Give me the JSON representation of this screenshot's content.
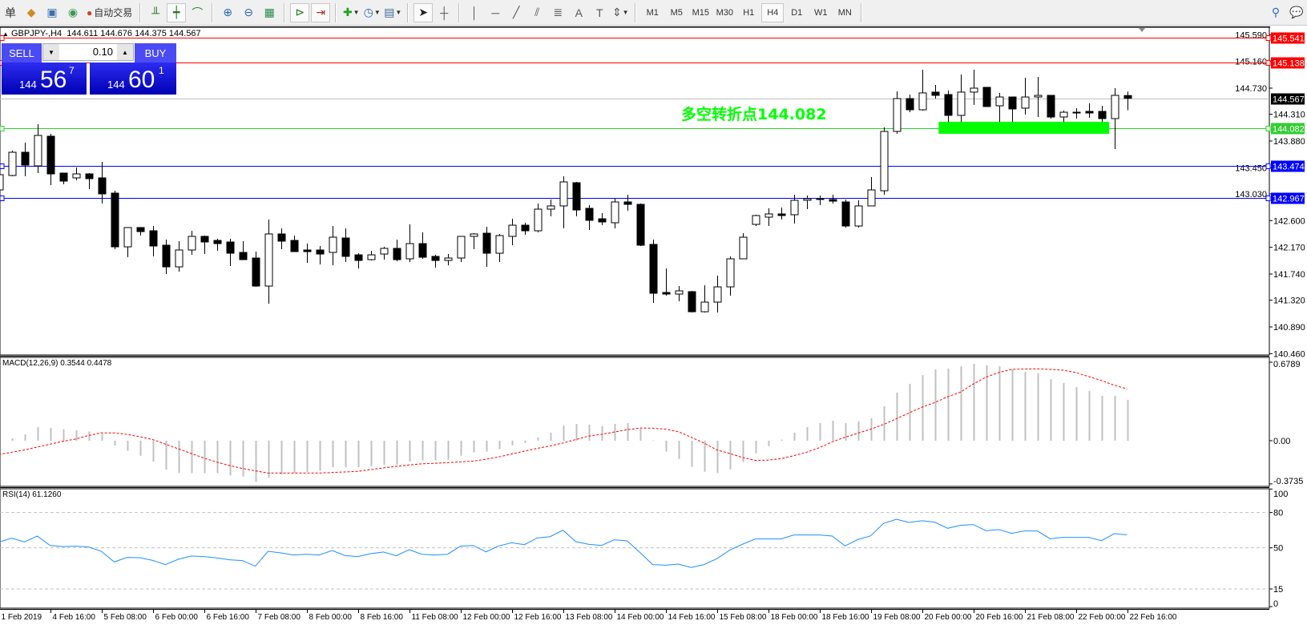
{
  "toolbar": {
    "items": [
      {
        "type": "icon",
        "name": "orders-icon",
        "glyph": "单"
      },
      {
        "type": "icon",
        "name": "market-watch-icon",
        "glyph": "◆",
        "color": "#d08a20"
      },
      {
        "type": "icon",
        "name": "navigator-icon",
        "glyph": "▣",
        "color": "#3a6fb0"
      },
      {
        "type": "icon",
        "name": "signals-icon",
        "glyph": "◉",
        "color": "#3a9a50"
      },
      {
        "type": "button",
        "name": "auto-trading-button",
        "glyph": "●",
        "color": "#d04020",
        "label": "自动交易"
      },
      {
        "type": "sep"
      },
      {
        "type": "icon",
        "name": "bar-chart-icon",
        "glyph": "╨",
        "color": "#2a7a2a"
      },
      {
        "type": "icon",
        "name": "candlestick-chart-icon",
        "glyph": "┿",
        "color": "#2a7a2a",
        "active": true
      },
      {
        "type": "icon",
        "name": "line-chart-icon",
        "glyph": "⌒",
        "color": "#2a7a2a"
      },
      {
        "type": "sep"
      },
      {
        "type": "icon",
        "name": "zoom-in-icon",
        "glyph": "⊕",
        "color": "#2a6ab0"
      },
      {
        "type": "icon",
        "name": "zoom-out-icon",
        "glyph": "⊖",
        "color": "#2a6ab0"
      },
      {
        "type": "icon",
        "name": "tile-windows-icon",
        "glyph": "▦",
        "color": "#2a8a4a"
      },
      {
        "type": "sep"
      },
      {
        "type": "icon",
        "name": "auto-scroll-icon",
        "glyph": "⊳",
        "color": "#2a7a2a",
        "active": true
      },
      {
        "type": "icon",
        "name": "chart-shift-icon",
        "glyph": "⇥",
        "color": "#b03030",
        "active": true
      },
      {
        "type": "sep"
      },
      {
        "type": "icon",
        "name": "indicators-icon",
        "glyph": "✚",
        "color": "#20a020",
        "dropdown": true
      },
      {
        "type": "icon",
        "name": "periods-clock-icon",
        "glyph": "◷",
        "color": "#2a6ab0",
        "dropdown": true
      },
      {
        "type": "icon",
        "name": "templates-icon",
        "glyph": "▤",
        "color": "#3a6a9a",
        "dropdown": true
      },
      {
        "type": "sep"
      },
      {
        "type": "icon",
        "name": "cursor-icon",
        "glyph": "➤",
        "color": "#222",
        "active": true
      },
      {
        "type": "icon",
        "name": "crosshair-icon",
        "glyph": "┼",
        "color": "#555"
      },
      {
        "type": "sep"
      },
      {
        "type": "icon",
        "name": "vertical-line-icon",
        "glyph": "│",
        "color": "#555"
      },
      {
        "type": "icon",
        "name": "horizontal-line-icon",
        "glyph": "─",
        "color": "#555"
      },
      {
        "type": "icon",
        "name": "trendline-icon",
        "glyph": "╱",
        "color": "#555"
      },
      {
        "type": "icon",
        "name": "equidistant-channel-icon",
        "glyph": "⫽",
        "color": "#555"
      },
      {
        "type": "icon",
        "name": "fibonacci-icon",
        "glyph": "≣",
        "color": "#555"
      },
      {
        "type": "icon",
        "name": "text-icon",
        "glyph": "A",
        "color": "#555"
      },
      {
        "type": "icon",
        "name": "text-label-icon",
        "glyph": "T",
        "color": "#555"
      },
      {
        "type": "icon",
        "name": "arrows-icon",
        "glyph": "⇕",
        "color": "#555",
        "dropdown": true
      },
      {
        "type": "sep"
      }
    ],
    "timeframes": [
      "M1",
      "M5",
      "M15",
      "M30",
      "H1",
      "H4",
      "D1",
      "W1",
      "MN"
    ],
    "active_timeframe": "H4",
    "right": [
      {
        "name": "search-icon",
        "glyph": "⚲",
        "color": "#2a6ad0"
      },
      {
        "name": "chat-icon",
        "glyph": "💬",
        "color": "#888"
      }
    ]
  },
  "chart": {
    "symbol_header": "GBPJPY-,H4  144.611 144.676 144.375 144.567",
    "header_icon": "▲",
    "annotation": "多空转折点144.082"
  },
  "trade_panel": {
    "sell_label": "SELL",
    "buy_label": "BUY",
    "lot": "0.10",
    "sell_price": {
      "small": "144",
      "big": "56",
      "sup": "7"
    },
    "buy_price": {
      "small": "144",
      "big": "60",
      "sup": "1"
    }
  },
  "chart_data": [
    {
      "type": "candlestick",
      "symbol": "GBPJPY-",
      "timeframe": "H4",
      "ylim": [
        140.46,
        145.6
      ],
      "y_ticks": [
        "145.590",
        "145.160",
        "144.730",
        "144.310",
        "143.880",
        "143.450",
        "143.030",
        "142.600",
        "142.170",
        "141.740",
        "141.320",
        "140.890",
        "140.460"
      ],
      "x_tick_labels": [
        "1 Feb 2019",
        "4 Feb 16:00",
        "5 Feb 08:00",
        "6 Feb 00:00",
        "6 Feb 16:00",
        "7 Feb 08:00",
        "8 Feb 00:00",
        "8 Feb 16:00",
        "11 Feb 08:00",
        "12 Feb 00:00",
        "12 Feb 16:00",
        "13 Feb 08:00",
        "14 Feb 00:00",
        "14 Feb 16:00",
        "15 Feb 08:00",
        "18 Feb 00:00",
        "18 Feb 16:00",
        "19 Feb 08:00",
        "20 Feb 00:00",
        "20 Feb 16:00",
        "21 Feb 08:00",
        "22 Feb 00:00",
        "22 Feb 16:00"
      ],
      "ohlc": [
        [
          143.093,
          143.39,
          143.055,
          143.338
        ],
        [
          143.325,
          143.725,
          143.312,
          143.699
        ],
        [
          143.699,
          143.854,
          143.312,
          143.493
        ],
        [
          143.48,
          144.15,
          143.364,
          143.97
        ],
        [
          143.957,
          143.995,
          143.171,
          143.351
        ],
        [
          143.364,
          143.364,
          143.184,
          143.235
        ],
        [
          143.287,
          143.454,
          143.248,
          143.351
        ],
        [
          143.351,
          143.364,
          143.106,
          143.274
        ],
        [
          143.287,
          143.544,
          142.874,
          143.029
        ],
        [
          143.042,
          143.08,
          142.14,
          142.178
        ],
        [
          142.178,
          142.488,
          142.011,
          142.488
        ],
        [
          142.488,
          142.488,
          142.359,
          142.423
        ],
        [
          142.436,
          142.513,
          142.024,
          142.191
        ],
        [
          142.204,
          142.294,
          141.74,
          141.856
        ],
        [
          141.856,
          142.269,
          141.779,
          142.127
        ],
        [
          142.127,
          142.436,
          142.049,
          142.346
        ],
        [
          142.346,
          142.359,
          142.062,
          142.256
        ],
        [
          142.281,
          142.307,
          142.114,
          142.23
        ],
        [
          142.256,
          142.307,
          141.869,
          142.075
        ],
        [
          142.088,
          142.269,
          141.972,
          141.972
        ],
        [
          141.998,
          142.101,
          141.534,
          141.547
        ],
        [
          141.547,
          142.617,
          141.263,
          142.385
        ],
        [
          142.385,
          142.475,
          142.14,
          142.269
        ],
        [
          142.281,
          142.359,
          142.101,
          142.101
        ],
        [
          142.127,
          142.23,
          141.921,
          142.101
        ],
        [
          142.127,
          142.191,
          141.895,
          142.062
        ],
        [
          142.088,
          142.513,
          141.882,
          142.333
        ],
        [
          142.32,
          142.475,
          141.933,
          142.024
        ],
        [
          142.049,
          142.075,
          141.83,
          141.959
        ],
        [
          141.972,
          142.114,
          141.959,
          142.049
        ],
        [
          142.062,
          142.178,
          141.972,
          142.153
        ],
        [
          142.153,
          142.294,
          141.946,
          141.972
        ],
        [
          141.985,
          142.539,
          141.933,
          142.23
        ],
        [
          142.23,
          142.41,
          141.985,
          142.011
        ],
        [
          142.024,
          142.049,
          141.843,
          141.959
        ],
        [
          141.959,
          142.062,
          141.882,
          141.998
        ],
        [
          141.998,
          142.346,
          141.933,
          142.346
        ],
        [
          142.346,
          142.397,
          142.14,
          142.385
        ],
        [
          142.397,
          142.501,
          141.856,
          142.075
        ],
        [
          142.075,
          142.385,
          141.933,
          142.359
        ],
        [
          142.346,
          142.629,
          142.204,
          142.526
        ],
        [
          142.526,
          142.565,
          142.372,
          142.436
        ],
        [
          142.436,
          142.874,
          142.41,
          142.784
        ],
        [
          142.784,
          142.939,
          142.668,
          142.836
        ],
        [
          142.836,
          143.312,
          142.475,
          143.222
        ],
        [
          143.209,
          143.222,
          142.668,
          142.771
        ],
        [
          142.797,
          142.848,
          142.449,
          142.604
        ],
        [
          142.629,
          142.72,
          142.526,
          142.578
        ],
        [
          142.565,
          142.952,
          142.475,
          142.9
        ],
        [
          142.9,
          143.016,
          142.758,
          142.861
        ],
        [
          142.861,
          142.874,
          142.191,
          142.204
        ],
        [
          142.217,
          142.294,
          141.276,
          141.431
        ],
        [
          141.444,
          141.83,
          141.392,
          141.418
        ],
        [
          141.418,
          141.547,
          141.302,
          141.47
        ],
        [
          141.457,
          141.47,
          141.122,
          141.134
        ],
        [
          141.134,
          141.56,
          141.122,
          141.289
        ],
        [
          141.289,
          141.714,
          141.122,
          141.534
        ],
        [
          141.534,
          142.024,
          141.392,
          141.985
        ],
        [
          141.985,
          142.397,
          141.985,
          142.333
        ],
        [
          142.539,
          142.694,
          142.513,
          142.681
        ],
        [
          142.655,
          142.797,
          142.513,
          142.707
        ],
        [
          142.707,
          142.81,
          142.617,
          142.681
        ],
        [
          142.694,
          143.016,
          142.552,
          142.926
        ],
        [
          142.926,
          143.003,
          142.784,
          142.952
        ],
        [
          142.952,
          143.003,
          142.848,
          142.952
        ],
        [
          142.939,
          143.016,
          142.874,
          142.913
        ],
        [
          142.9,
          142.939,
          142.488,
          142.513
        ],
        [
          142.513,
          142.926,
          142.488,
          142.836
        ],
        [
          142.836,
          143.3,
          142.836,
          143.093
        ],
        [
          143.08,
          144.099,
          143.016,
          144.034
        ],
        [
          144.034,
          144.678,
          143.995,
          144.562
        ],
        [
          144.562,
          144.627,
          144.343,
          144.382
        ],
        [
          144.382,
          145.026,
          144.369,
          144.653
        ],
        [
          144.666,
          144.782,
          144.562,
          144.614
        ],
        [
          144.627,
          144.691,
          144.189,
          144.292
        ],
        [
          144.292,
          144.949,
          144.189,
          144.666
        ],
        [
          144.666,
          145.026,
          144.459,
          144.73
        ],
        [
          144.743,
          144.743,
          144.434,
          144.434
        ],
        [
          144.446,
          144.653,
          144.189,
          144.588
        ],
        [
          144.588,
          144.588,
          144.189,
          144.395
        ],
        [
          144.408,
          144.897,
          144.305,
          144.588
        ],
        [
          144.588,
          144.91,
          144.266,
          144.614
        ],
        [
          144.614,
          144.614,
          144.24,
          144.266
        ],
        [
          144.266,
          144.369,
          144.189,
          144.343
        ],
        [
          144.343,
          144.408,
          144.24,
          144.343
        ],
        [
          144.356,
          144.485,
          144.253,
          144.33
        ],
        [
          144.356,
          144.446,
          144.189,
          144.24
        ],
        [
          144.24,
          144.73,
          143.751,
          144.614
        ],
        [
          144.611,
          144.676,
          144.375,
          144.567
        ]
      ],
      "horizontal_levels": [
        {
          "price": "145.541",
          "color": "#ff0000",
          "label_text": "#ffffff"
        },
        {
          "price": "145.138",
          "color": "#ff0000",
          "label_text": "#ffffff"
        },
        {
          "price": "144.567",
          "color": "#c0c0c0",
          "label_bg": "#000000",
          "label_text": "#ffffff",
          "kind": "bid"
        },
        {
          "price": "144.082",
          "color": "#32cd32",
          "label_text": "#ffffff"
        },
        {
          "price": "143.474",
          "color": "#0000ff",
          "label_text": "#ffffff"
        },
        {
          "price": "142.967",
          "color": "#0000ff",
          "label_text": "#ffffff"
        }
      ],
      "zone": {
        "price_top": 144.189,
        "price_bottom": 143.995,
        "bar_start": 73.3,
        "bar_end": 86.6,
        "color": "#00ff00"
      },
      "bull_body_color": "#ffffff",
      "bear_body_color": "#000000"
    },
    {
      "type": "bar+line",
      "label": "MACD(12,26,9) 0.3544 0.4478",
      "y_ticks": [
        "0.6789",
        "0.00",
        "-0.3735"
      ],
      "ylim": [
        -0.3735,
        0.6789
      ],
      "histogram_color": "#c0c0c0",
      "signal_color": "#ff0000",
      "macd": [
        0.01,
        0.02,
        0.055,
        0.118,
        0.11,
        0.1,
        0.09,
        0.08,
        0.06,
        -0.04,
        -0.088,
        -0.13,
        -0.18,
        -0.25,
        -0.28,
        -0.28,
        -0.28,
        -0.28,
        -0.3,
        -0.31,
        -0.355,
        -0.32,
        -0.29,
        -0.28,
        -0.27,
        -0.26,
        -0.23,
        -0.23,
        -0.23,
        -0.22,
        -0.21,
        -0.21,
        -0.18,
        -0.17,
        -0.17,
        -0.164,
        -0.13,
        -0.1,
        -0.095,
        -0.074,
        -0.04,
        -0.018,
        0.028,
        0.069,
        0.13,
        0.145,
        0.139,
        0.125,
        0.145,
        0.152,
        0.104,
        0.003,
        -0.095,
        -0.157,
        -0.226,
        -0.268,
        -0.28,
        -0.247,
        -0.185,
        -0.109,
        -0.046,
        0.009,
        0.069,
        0.118,
        0.152,
        0.173,
        0.152,
        0.166,
        0.194,
        0.298,
        0.416,
        0.492,
        0.568,
        0.617,
        0.624,
        0.644,
        0.665,
        0.651,
        0.644,
        0.617,
        0.596,
        0.582,
        0.533,
        0.499,
        0.464,
        0.43,
        0.388,
        0.388,
        0.3544
      ],
      "signal": [
        -0.12,
        -0.1,
        -0.08,
        -0.055,
        -0.03,
        -0.005,
        0.015,
        0.045,
        0.068,
        0.067,
        0.055,
        0.035,
        0.01,
        -0.03,
        -0.07,
        -0.11,
        -0.15,
        -0.185,
        -0.215,
        -0.24,
        -0.26,
        -0.28,
        -0.28,
        -0.28,
        -0.28,
        -0.28,
        -0.275,
        -0.27,
        -0.265,
        -0.25,
        -0.235,
        -0.222,
        -0.21,
        -0.2,
        -0.195,
        -0.19,
        -0.183,
        -0.176,
        -0.16,
        -0.14,
        -0.115,
        -0.09,
        -0.066,
        -0.045,
        -0.02,
        0.01,
        0.04,
        0.055,
        0.075,
        0.095,
        0.11,
        0.108,
        0.1,
        0.078,
        0.03,
        -0.02,
        -0.08,
        -0.11,
        -0.145,
        -0.17,
        -0.168,
        -0.155,
        -0.13,
        -0.1,
        -0.06,
        -0.01,
        0.03,
        0.065,
        0.1,
        0.14,
        0.19,
        0.24,
        0.29,
        0.33,
        0.38,
        0.42,
        0.49,
        0.55,
        0.59,
        0.617,
        0.62,
        0.621,
        0.617,
        0.61,
        0.59,
        0.555,
        0.52,
        0.48,
        0.4478
      ]
    },
    {
      "type": "line",
      "label": "RSI(14) 61.1260",
      "y_ticks": [
        "100",
        "80",
        "50",
        "15",
        "0"
      ],
      "levels": [
        80,
        50,
        15
      ],
      "ylim": [
        0,
        100
      ],
      "color": "#1e90ff",
      "values": [
        54.8,
        58.2,
        55,
        60,
        52,
        51,
        51.4,
        50.7,
        47,
        38,
        41.8,
        41.6,
        39.3,
        35.7,
        40.2,
        43,
        42.5,
        41.4,
        39.8,
        39.1,
        34.3,
        47,
        45.7,
        43.9,
        44.5,
        43.9,
        47.7,
        43.4,
        42.5,
        45,
        46.4,
        43.2,
        48.4,
        44.5,
        43.9,
        44.5,
        51.4,
        52,
        46.6,
        51.6,
        54.3,
        52.7,
        58.4,
        59.5,
        65,
        55.2,
        53,
        52,
        56.8,
        55.9,
        46.1,
        35.7,
        35.2,
        36.1,
        33.2,
        35.7,
        40.7,
        48,
        53,
        57.5,
        57.5,
        57.5,
        60.9,
        60.9,
        60.9,
        60,
        51.6,
        57,
        60.2,
        70.7,
        74.3,
        71.6,
        73,
        71.8,
        66.6,
        69.1,
        69.8,
        64.5,
        65.5,
        62.3,
        64.3,
        64.3,
        57.7,
        58.9,
        58.9,
        58.9,
        56.1,
        62,
        61.126
      ]
    }
  ]
}
